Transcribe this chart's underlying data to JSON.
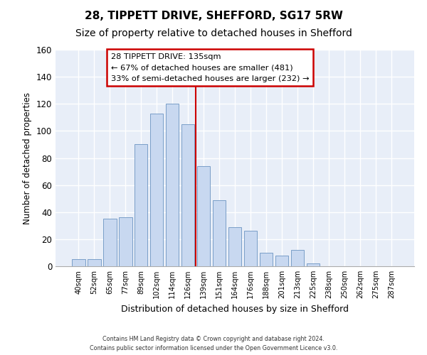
{
  "title": "28, TIPPETT DRIVE, SHEFFORD, SG17 5RW",
  "subtitle": "Size of property relative to detached houses in Shefford",
  "xlabel": "Distribution of detached houses by size in Shefford",
  "ylabel": "Number of detached properties",
  "bar_labels": [
    "40sqm",
    "52sqm",
    "65sqm",
    "77sqm",
    "89sqm",
    "102sqm",
    "114sqm",
    "126sqm",
    "139sqm",
    "151sqm",
    "164sqm",
    "176sqm",
    "188sqm",
    "201sqm",
    "213sqm",
    "225sqm",
    "238sqm",
    "250sqm",
    "262sqm",
    "275sqm",
    "287sqm"
  ],
  "bar_values": [
    5,
    5,
    35,
    36,
    90,
    113,
    120,
    105,
    74,
    49,
    29,
    26,
    10,
    8,
    12,
    2,
    0,
    0,
    0,
    0,
    0
  ],
  "bar_color": "#c8d8f0",
  "bar_edge_color": "#7a9ec8",
  "vline_x_index": 7.5,
  "vline_color": "#cc0000",
  "annotation_line1": "28 TIPPETT DRIVE: 135sqm",
  "annotation_line2": "← 67% of detached houses are smaller (481)",
  "annotation_line3": "33% of semi-detached houses are larger (232) →",
  "ylim": [
    0,
    160
  ],
  "yticks": [
    0,
    20,
    40,
    60,
    80,
    100,
    120,
    140,
    160
  ],
  "footer_line1": "Contains HM Land Registry data © Crown copyright and database right 2024.",
  "footer_line2": "Contains public sector information licensed under the Open Government Licence v3.0.",
  "fig_bg_color": "#ffffff",
  "plot_bg_color": "#e8eef8",
  "grid_color": "#ffffff",
  "title_fontsize": 11,
  "subtitle_fontsize": 10
}
